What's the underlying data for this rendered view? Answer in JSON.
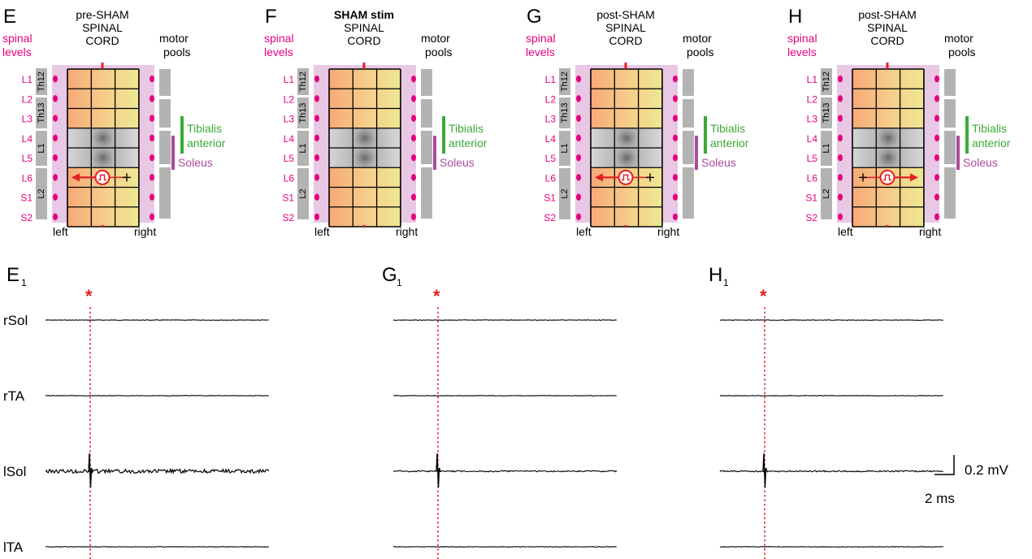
{
  "colors": {
    "magenta": "#e6007e",
    "green": "#3aaa35",
    "purple": "#a94b9d",
    "red": "#e31e24",
    "pink_bg": "#e8c8e4",
    "gray_block": "#b3b3b3",
    "dark_gray_row": "#8c8c8c"
  },
  "panels": [
    {
      "letter": "E",
      "title": [
        "pre-SHAM",
        "SPINAL",
        "CORD"
      ],
      "title_bold_line": null,
      "stim": "left",
      "spinal_levels_label": [
        "spinal",
        "levels"
      ],
      "motor_pools_label": [
        "motor",
        "pools"
      ],
      "left_label": "left",
      "right_label": "right"
    },
    {
      "letter": "F",
      "title": [
        "SHAM stim",
        "SPINAL",
        "CORD"
      ],
      "title_bold_line": 0,
      "stim": "none",
      "spinal_levels_label": [
        "spinal",
        "levels"
      ],
      "motor_pools_label": [
        "motor",
        "pools"
      ],
      "left_label": "left",
      "right_label": "right"
    },
    {
      "letter": "G",
      "title": [
        "post-SHAM",
        "SPINAL",
        "CORD"
      ],
      "title_bold_line": null,
      "stim": "left",
      "spinal_levels_label": [
        "spinal",
        "levels"
      ],
      "motor_pools_label": [
        "motor",
        "pools"
      ],
      "left_label": "left",
      "right_label": "right"
    },
    {
      "letter": "H",
      "title": [
        "post-SHAM",
        "SPINAL",
        "CORD"
      ],
      "title_bold_line": null,
      "stim": "right",
      "spinal_levels_label": [
        "spinal",
        "levels"
      ],
      "motor_pools_label": [
        "motor",
        "pools"
      ],
      "left_label": "left",
      "right_label": "right"
    }
  ],
  "spinal_levels": [
    "L1",
    "L2",
    "L3",
    "L4",
    "L5",
    "L6",
    "S1",
    "S2"
  ],
  "vertebrae": [
    "Th12",
    "Th13",
    "L1",
    "L2"
  ],
  "muscles": {
    "tibialis": [
      "Tibialis",
      "anterior"
    ],
    "soleus": "Soleus"
  },
  "traces": {
    "panels": [
      {
        "label": "E",
        "subscript": "1",
        "star": "*",
        "noisy_lsol": true
      },
      {
        "label": "G",
        "subscript": "1",
        "star": "*",
        "noisy_lsol": false
      },
      {
        "label": "H",
        "subscript": "1",
        "star": "*",
        "noisy_lsol": false
      }
    ],
    "channels": [
      "rSol",
      "rTA",
      "lSol",
      "lTA"
    ],
    "scale": {
      "voltage": "0.2 mV",
      "time": "2 ms"
    }
  }
}
